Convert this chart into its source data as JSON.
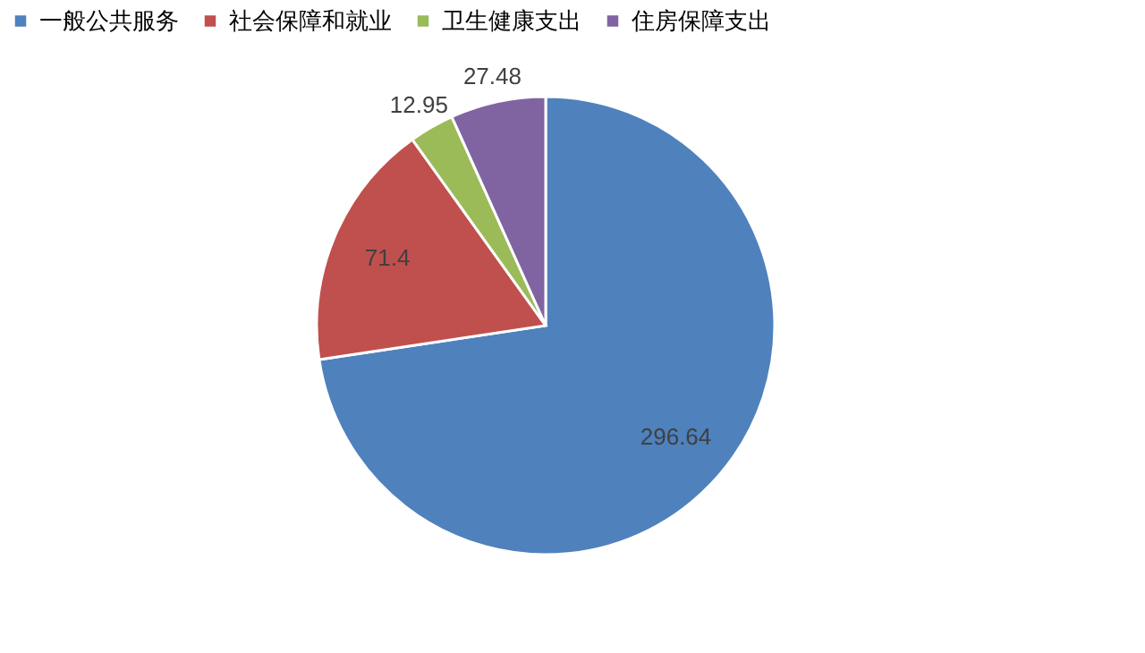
{
  "chart_data": {
    "type": "pie",
    "categories": [
      "一般公共服务",
      "社会保障和就业",
      "卫生健康支出",
      "住房保障支出"
    ],
    "values": [
      296.64,
      71.4,
      12.95,
      27.48
    ],
    "colors": [
      "#4f81bd",
      "#c0504d",
      "#9bbb59",
      "#8064a2"
    ],
    "data_labels": true,
    "legend": "top"
  }
}
